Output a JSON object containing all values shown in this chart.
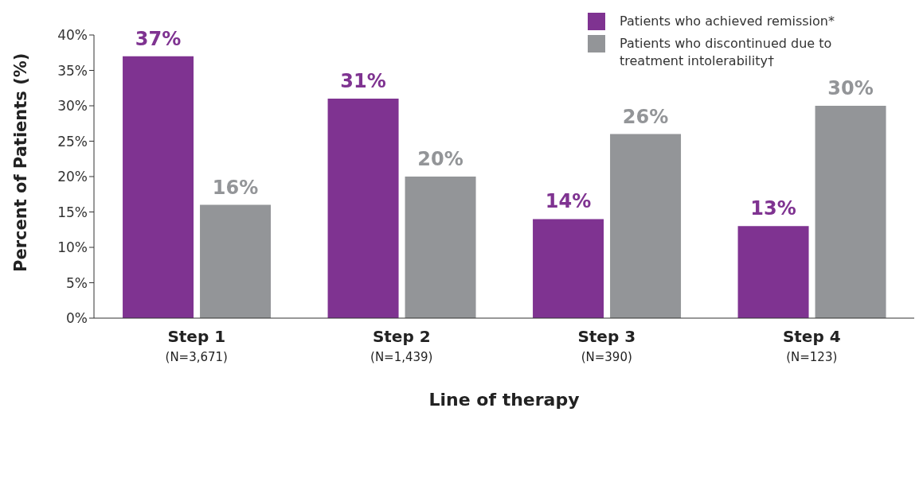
{
  "chart_data": {
    "type": "bar",
    "xlabel": "Line of therapy",
    "ylabel": "Percent of Patients (%)",
    "categories": [
      "Step 1\n(N=3,671)",
      "Step 2\n(N=1,439)",
      "Step 3\n(N=390)",
      "Step 4\n(N=123)"
    ],
    "series": [
      {
        "name": "Patients who achieved remission*",
        "color": "#7f3391",
        "values": [
          37,
          31,
          14,
          13
        ],
        "value_labels": [
          "37%",
          "31%",
          "14%",
          "13%"
        ]
      },
      {
        "name": "Patients who discontinued due to treatment intolerability†",
        "color": "#939598",
        "values": [
          16,
          20,
          26,
          30
        ],
        "value_labels": [
          "16%",
          "20%",
          "26%",
          "30%"
        ]
      }
    ],
    "ylim": [
      0,
      40
    ],
    "yticks": [
      {
        "value": 0,
        "label": "0%"
      },
      {
        "value": 5,
        "label": "5%"
      },
      {
        "value": 10,
        "label": "10%"
      },
      {
        "value": 15,
        "label": "15%"
      },
      {
        "value": 20,
        "label": "20%"
      },
      {
        "value": 25,
        "label": "25%"
      },
      {
        "value": 30,
        "label": "30%"
      },
      {
        "value": 35,
        "label": "35%"
      },
      {
        "value": 40,
        "label": "40%"
      }
    ],
    "grid": false,
    "legend": "top right"
  }
}
